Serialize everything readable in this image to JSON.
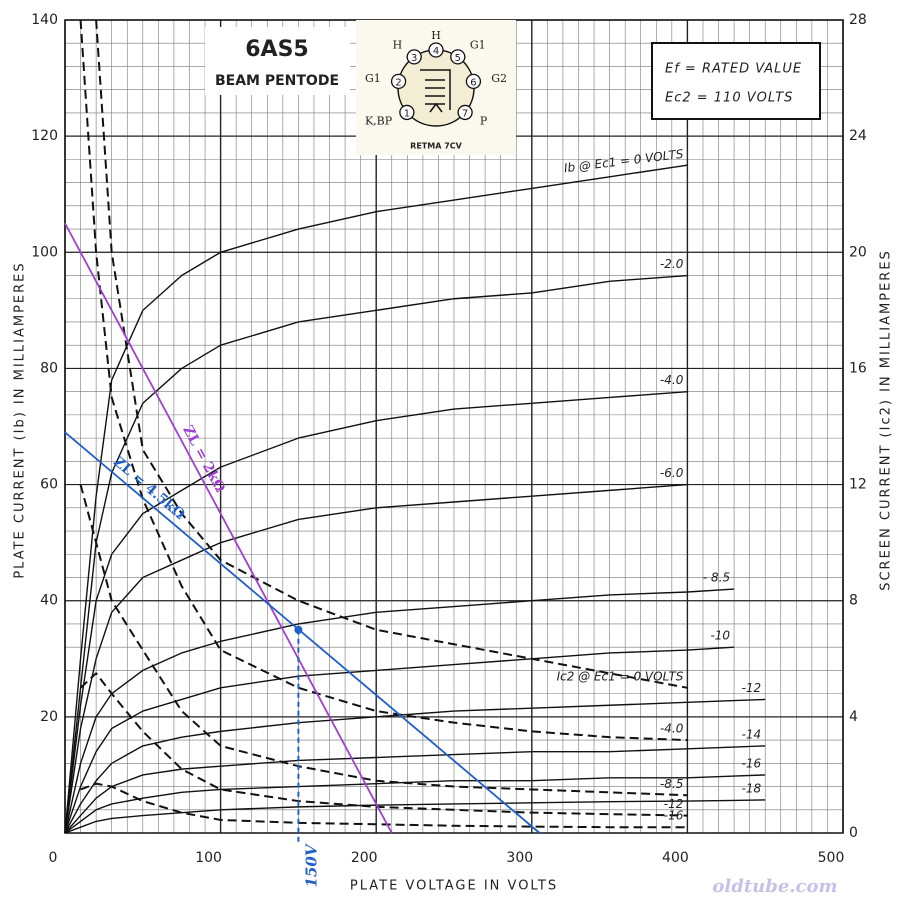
{
  "chart_data": {
    "type": "line",
    "title": "6AS5",
    "subtitle": "BEAM PENTODE",
    "xlabel": "PLATE VOLTAGE IN VOLTS",
    "ylabel": "PLATE CURRENT (Ib) IN MILLIAMPERES",
    "y2label": "SCREEN CURRENT (Ic2) IN MILLIAMPERES",
    "xlim": [
      0,
      500
    ],
    "xticks": [
      0,
      100,
      200,
      300,
      400,
      500
    ],
    "ylim": [
      0,
      140
    ],
    "yticks": [
      20,
      40,
      60,
      80,
      100,
      120,
      140
    ],
    "y2lim": [
      0,
      28
    ],
    "y2ticks": [
      0,
      4,
      8,
      12,
      16,
      20,
      24,
      28
    ],
    "grid": true,
    "conditions": [
      "Ef = RATED VALUE",
      "Ec2 = 110 VOLTS"
    ],
    "tube": {
      "base": "RETMA 7CV",
      "pins": [
        {
          "number": "1",
          "label": "K,BP"
        },
        {
          "number": "2",
          "label": "G1"
        },
        {
          "number": "3",
          "label": "H"
        },
        {
          "number": "4",
          "label": "H"
        },
        {
          "number": "5",
          "label": "G1"
        },
        {
          "number": "6",
          "label": "G2"
        },
        {
          "number": "7",
          "label": "P"
        }
      ]
    },
    "x": [
      0,
      10,
      20,
      30,
      50,
      75,
      100,
      150,
      200,
      250,
      300,
      350,
      400,
      430,
      450
    ],
    "series": [
      {
        "name": "Ib @ Ec1 = 0 VOLTS",
        "color": "#111111",
        "dash": false,
        "values": [
          0,
          30,
          58,
          78,
          90,
          96,
          100,
          104,
          107,
          109,
          111,
          113,
          115,
          null,
          null
        ]
      },
      {
        "name": "-2.0",
        "color": "#111111",
        "dash": false,
        "values": [
          0,
          25,
          50,
          62,
          74,
          80,
          84,
          88,
          90,
          92,
          93,
          95,
          96,
          null,
          null
        ]
      },
      {
        "name": "-4.0",
        "color": "#111111",
        "dash": false,
        "values": [
          0,
          22,
          40,
          48,
          55,
          59,
          63,
          68,
          71,
          73,
          74,
          75,
          76,
          null,
          null
        ]
      },
      {
        "name": "-6.0",
        "color": "#111111",
        "dash": false,
        "values": [
          0,
          18,
          30,
          38,
          44,
          47,
          50,
          54,
          56,
          57,
          58,
          59,
          60,
          null,
          null
        ]
      },
      {
        "name": "- 8.5",
        "color": "#111111",
        "dash": false,
        "values": [
          0,
          12,
          20,
          24,
          28,
          31,
          33,
          36,
          38,
          39,
          40,
          41,
          41.5,
          42,
          null
        ]
      },
      {
        "name": "-10",
        "color": "#111111",
        "dash": false,
        "values": [
          0,
          8,
          14,
          18,
          21,
          23,
          25,
          27,
          28,
          29,
          30,
          31,
          31.5,
          32,
          null
        ]
      },
      {
        "name": "-12",
        "color": "#111111",
        "dash": false,
        "values": [
          0,
          5,
          9,
          12,
          15,
          16.5,
          17.5,
          19,
          20,
          21,
          21.5,
          22,
          22.5,
          22.8,
          23
        ]
      },
      {
        "name": "-14",
        "color": "#111111",
        "dash": false,
        "values": [
          0,
          3,
          6,
          8,
          10,
          11,
          11.5,
          12.5,
          13,
          13.5,
          14,
          14,
          14.5,
          14.8,
          15
        ]
      },
      {
        "name": "-16",
        "color": "#111111",
        "dash": false,
        "values": [
          0,
          2,
          4,
          5,
          6,
          7,
          7.5,
          8,
          8.5,
          9,
          9,
          9.5,
          9.5,
          9.8,
          10
        ]
      },
      {
        "name": "-18",
        "color": "#111111",
        "dash": false,
        "values": [
          0,
          1,
          2,
          2.5,
          3,
          3.5,
          4,
          4.5,
          4.8,
          5,
          5.2,
          5.4,
          5.5,
          5.6,
          5.7
        ]
      },
      {
        "name": "Ic2 @ Ec1 = 0 VOLTS",
        "color": "#111111",
        "dash": true,
        "axis": "y2",
        "values": [
          null,
          null,
          28,
          20,
          13.2,
          11,
          9.4,
          8,
          7,
          6.5,
          6,
          5.5,
          5,
          null,
          null
        ]
      },
      {
        "name": "-4.0",
        "color": "#111111",
        "dash": true,
        "axis": "y2",
        "values": [
          null,
          28,
          20,
          15,
          11.5,
          8.5,
          6.3,
          5,
          4.2,
          3.8,
          3.5,
          3.3,
          3.2,
          null,
          null
        ]
      },
      {
        "name": "-8.5",
        "color": "#111111",
        "dash": true,
        "axis": "y2",
        "values": [
          null,
          12,
          10,
          8,
          6.3,
          4.2,
          3,
          2.3,
          1.8,
          1.6,
          1.5,
          1.4,
          1.3,
          null,
          null
        ]
      },
      {
        "name": "-12",
        "color": "#111111",
        "dash": true,
        "axis": "y2",
        "values": [
          null,
          5,
          5.5,
          4.8,
          3.5,
          2.2,
          1.5,
          1.1,
          0.9,
          0.8,
          0.7,
          0.65,
          0.6,
          null,
          null
        ]
      },
      {
        "name": "-16",
        "color": "#111111",
        "dash": true,
        "axis": "y2",
        "values": [
          null,
          1.5,
          1.7,
          1.6,
          1.1,
          0.7,
          0.45,
          0.35,
          0.3,
          0.25,
          0.22,
          0.2,
          0.2,
          null,
          null
        ]
      }
    ],
    "load_lines": [
      {
        "name": "ZL = 2kΩ",
        "color": "#a040d0",
        "x": [
          0,
          210
        ],
        "values": [
          105,
          0
        ]
      },
      {
        "name": "ZL = 4.5kΩ",
        "color": "#1f5fc8",
        "x": [
          0,
          305
        ],
        "values": [
          69,
          0
        ]
      }
    ],
    "operating_point": {
      "x": 150,
      "y": 35,
      "label": "150V",
      "color": "#1f5fc8"
    },
    "watermark": "oldtube.com"
  }
}
